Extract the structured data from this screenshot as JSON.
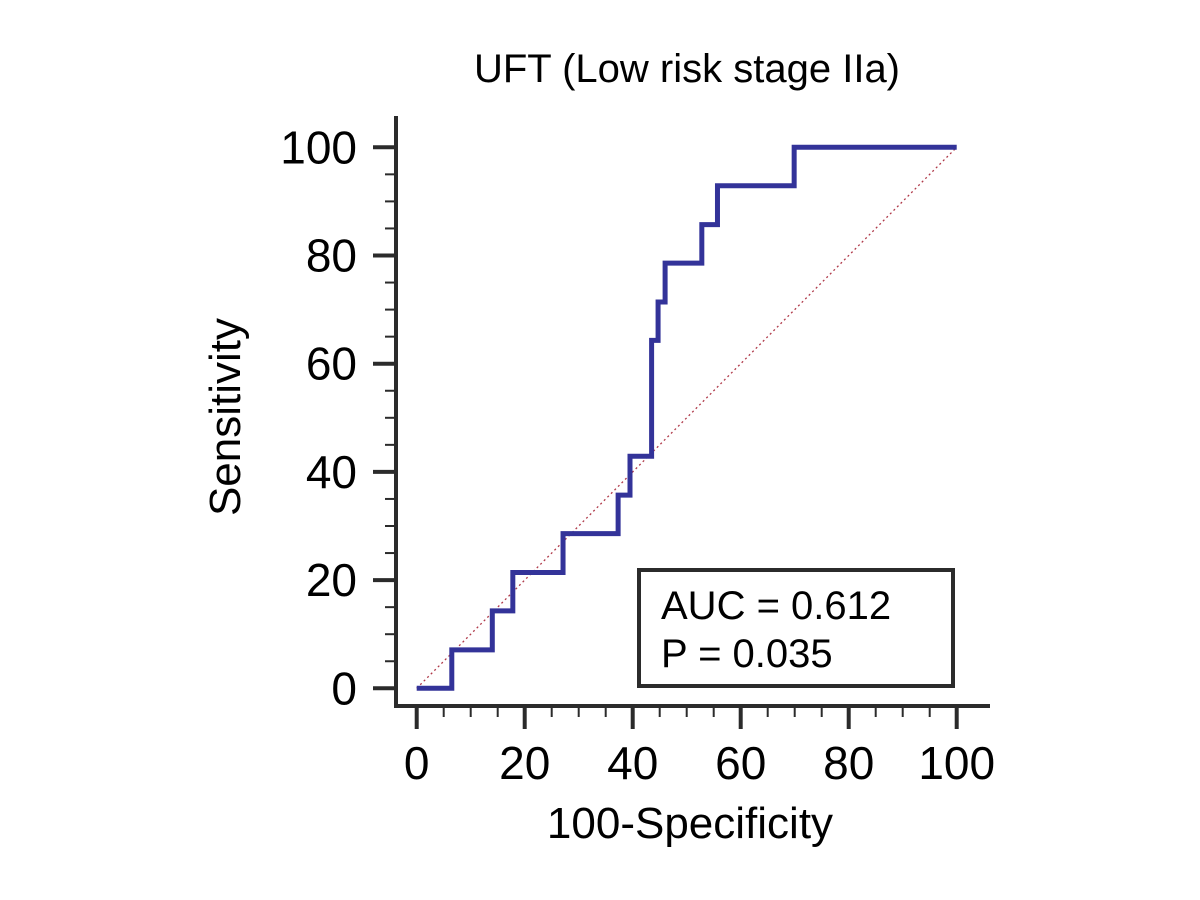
{
  "title": "UFT (Low risk stage IIa)",
  "axes": {
    "x": {
      "label": "100-Specificity",
      "major_ticks": [
        0,
        20,
        40,
        60,
        80,
        100
      ],
      "minor_step": 5,
      "range": [
        0,
        100
      ]
    },
    "y": {
      "label": "Sensitivity",
      "major_ticks": [
        0,
        20,
        40,
        60,
        80,
        100
      ],
      "minor_step": 5,
      "range": [
        0,
        100
      ]
    }
  },
  "annotation": {
    "auc_label": "AUC = 0.612",
    "p_label": "P = 0.035"
  },
  "colors": {
    "curve": "#333399",
    "diagonal": "#b03a4a",
    "axis": "#2b2b2b",
    "text": "#000000",
    "background": "#ffffff"
  },
  "chart_data": {
    "type": "line",
    "title": "UFT (Low risk stage IIa)",
    "xlabel": "100-Specificity",
    "ylabel": "Sensitivity",
    "xlim": [
      0,
      100
    ],
    "ylim": [
      0,
      100
    ],
    "grid": false,
    "legend": "none",
    "annotations": [
      "AUC = 0.612",
      "P = 0.035"
    ],
    "series": [
      {
        "name": "ROC step curve",
        "style": "solid",
        "color": "#333399",
        "points": [
          [
            0,
            0
          ],
          [
            6.5,
            0
          ],
          [
            6.5,
            7.1
          ],
          [
            14,
            7.1
          ],
          [
            14,
            14.3
          ],
          [
            17.8,
            14.3
          ],
          [
            17.8,
            21.4
          ],
          [
            27.1,
            21.4
          ],
          [
            27.1,
            28.6
          ],
          [
            37.3,
            28.6
          ],
          [
            37.3,
            35.7
          ],
          [
            39.5,
            35.7
          ],
          [
            39.5,
            42.9
          ],
          [
            43.5,
            42.9
          ],
          [
            43.5,
            64.3
          ],
          [
            44.7,
            64.3
          ],
          [
            44.7,
            71.4
          ],
          [
            46,
            71.4
          ],
          [
            46,
            78.6
          ],
          [
            52.8,
            78.6
          ],
          [
            52.8,
            85.7
          ],
          [
            55.7,
            85.7
          ],
          [
            55.7,
            92.9
          ],
          [
            69.9,
            92.9
          ],
          [
            69.9,
            100
          ],
          [
            100,
            100
          ]
        ]
      },
      {
        "name": "Reference diagonal",
        "style": "dotted",
        "color": "#b03a4a",
        "points": [
          [
            0,
            0
          ],
          [
            100,
            100
          ]
        ]
      }
    ]
  }
}
